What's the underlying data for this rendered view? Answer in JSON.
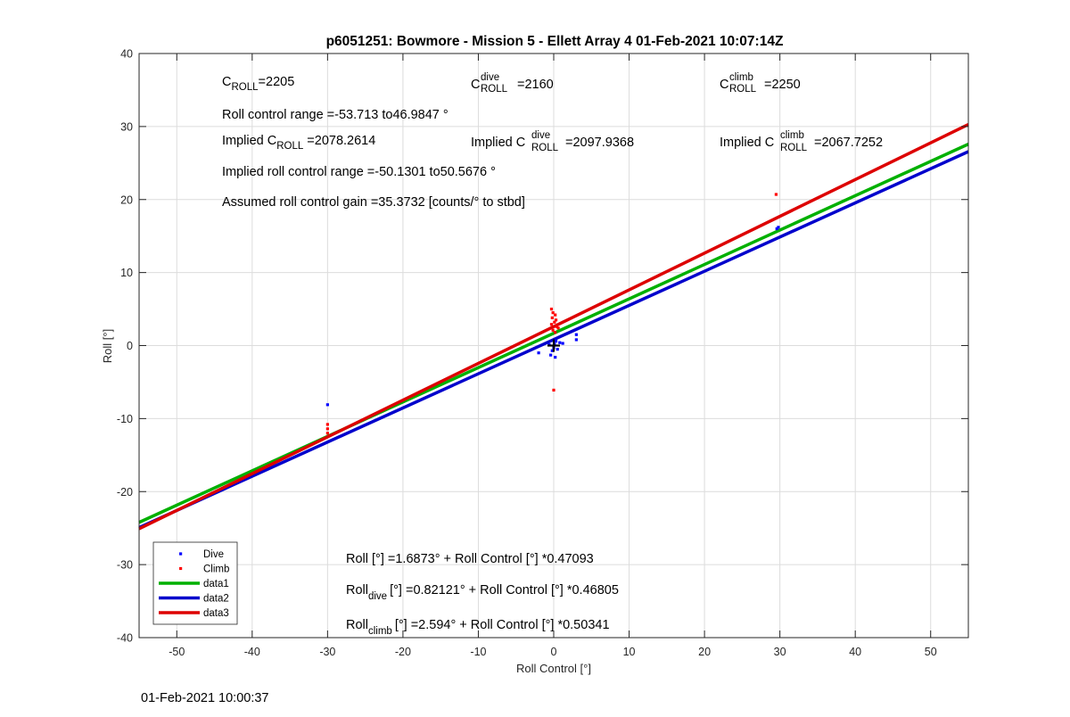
{
  "chart_data": {
    "type": "scatter",
    "title": "p6051251: Bowmore - Mission 5 - Ellett Array 4 01-Feb-2021 10:07:14Z",
    "xlabel": "Roll Control [°]",
    "ylabel": "Roll [°]",
    "xlim": [
      -55,
      55
    ],
    "ylim": [
      -40,
      40
    ],
    "xticks": [
      -50,
      -40,
      -30,
      -20,
      -10,
      0,
      10,
      20,
      30,
      40,
      50
    ],
    "yticks": [
      -40,
      -30,
      -20,
      -10,
      0,
      10,
      20,
      30,
      40
    ],
    "grid": true,
    "legend_position": "bottom-left",
    "colors": {
      "dive": "#0000ff",
      "climb": "#ff0000",
      "data1": "#00b000",
      "data2": "#0000cc",
      "data3": "#dd0000"
    },
    "series": [
      {
        "name": "Dive",
        "kind": "points",
        "color": "#0000ff",
        "points": [
          [
            -30,
            -8.1
          ],
          [
            -2,
            -1.0
          ],
          [
            -0.4,
            -1.3
          ],
          [
            -0.2,
            -0.7
          ],
          [
            0,
            -0.3
          ],
          [
            0.1,
            0.2
          ],
          [
            0.3,
            0.6
          ],
          [
            0.5,
            -0.5
          ],
          [
            0.8,
            0.4
          ],
          [
            1.2,
            0.3
          ],
          [
            -0.6,
            0.1
          ],
          [
            0.2,
            -1.6
          ],
          [
            3,
            1.5
          ],
          [
            3,
            0.8
          ],
          [
            29.6,
            16.0
          ],
          [
            29.8,
            16.2
          ]
        ]
      },
      {
        "name": "Climb",
        "kind": "points",
        "color": "#ff0000",
        "points": [
          [
            -30,
            -10.8
          ],
          [
            -30,
            -11.4
          ],
          [
            -30,
            -12.0
          ],
          [
            -0.3,
            5.0
          ],
          [
            -0.1,
            4.5
          ],
          [
            0.2,
            4.2
          ],
          [
            -0.2,
            3.8
          ],
          [
            0.3,
            3.5
          ],
          [
            0.1,
            3.2
          ],
          [
            -0.3,
            2.9
          ],
          [
            0.4,
            2.6
          ],
          [
            0.6,
            2.4
          ],
          [
            -0.1,
            2.1
          ],
          [
            0.2,
            1.8
          ],
          [
            0,
            -6.1
          ],
          [
            29.5,
            20.7
          ]
        ]
      },
      {
        "name": "data1",
        "kind": "line",
        "color": "#00b000",
        "intercept": 1.6873,
        "slope": 0.47093
      },
      {
        "name": "data2",
        "kind": "line",
        "color": "#0000cc",
        "intercept": 0.82121,
        "slope": 0.46805
      },
      {
        "name": "data3",
        "kind": "line",
        "color": "#dd0000",
        "intercept": 2.594,
        "slope": 0.50341
      }
    ],
    "marker_at_origin": "+",
    "annotations": {
      "c_roll": {
        "base": "C",
        "sub": "ROLL",
        "value": "=2205"
      },
      "c_roll_dive": {
        "base": "C",
        "sup": "dive",
        "sub": "ROLL",
        "value": "=2160"
      },
      "c_roll_climb": {
        "base": "C",
        "sup": "climb",
        "sub": "ROLL",
        "value": "=2250"
      },
      "roll_control_range": "Roll control range =-53.713 to46.9847 °",
      "implied_c_roll": {
        "prefix": "Implied C",
        "sub": "ROLL",
        "value": "=2078.2614"
      },
      "implied_c_roll_dive": {
        "prefix": "Implied C",
        "sup": "dive",
        "sub": "ROLL",
        "value": "=2097.9368"
      },
      "implied_c_roll_climb": {
        "prefix": "Implied C",
        "sup": "climb",
        "sub": "ROLL",
        "value": "=2067.7252"
      },
      "implied_range": "Implied roll control range =-50.1301 to50.5676 °",
      "gain": "Assumed roll control gain =35.3732 [counts/° to stbd]",
      "fit_all": "Roll [°] =1.6873° + Roll Control [°] *0.47093",
      "fit_dive": {
        "base": "Roll",
        "sub": "dive",
        "rest": "[°] =0.82121° + Roll Control [°] *0.46805"
      },
      "fit_climb": {
        "base": "Roll",
        "sub": "climb",
        "rest": "[°] =2.594° + Roll Control [°] *0.50341"
      }
    }
  },
  "footer": {
    "timestamp": "01-Feb-2021 10:00:37"
  }
}
